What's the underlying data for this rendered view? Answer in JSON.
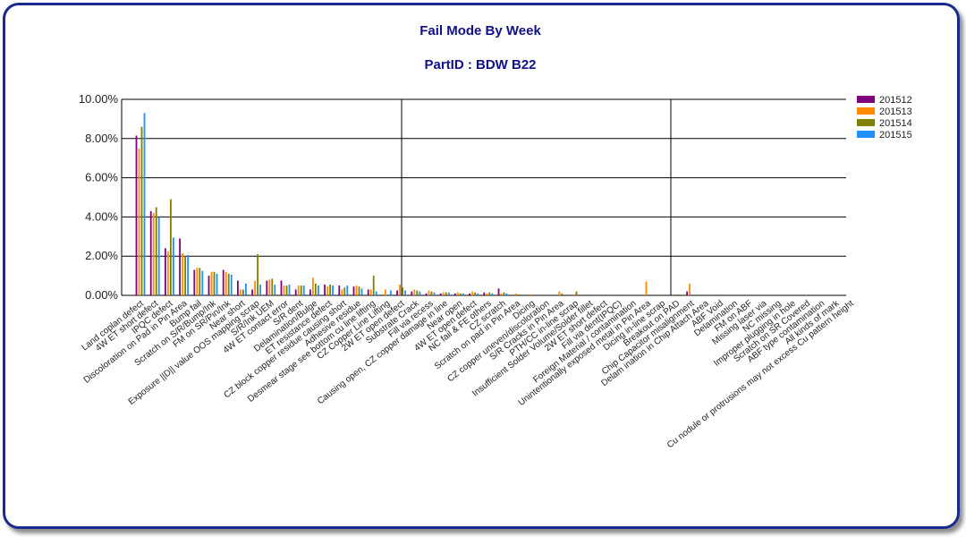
{
  "chart_data": {
    "type": "bar",
    "title": "Fail Mode By Week",
    "subtitle": "PartID  :  BDW B22",
    "xlabel": "",
    "ylabel": "",
    "ylim": [
      0,
      10
    ],
    "y_ticks": [
      "0.00%",
      "2.00%",
      "4.00%",
      "6.00%",
      "8.00%",
      "10.00%"
    ],
    "grid": "horizontal",
    "legend": "right",
    "categories": [
      "Land coplan defect",
      "4W ET short defect",
      "IPQC defect",
      "Discoloration on Pad in Pin Area",
      "Bump fail",
      "Scratch on S/R/Bump/Ink",
      "FM on SR/Pin/Ink",
      "Near short",
      "Exposure ||D|| value OOS mapping scrap",
      "S/R/Ink UEM",
      "4W ET contact error",
      "S/R dent",
      "Delamination/Bulge",
      "ET resistance defect",
      "CZ block copper residue causing short",
      "Adhesive residue",
      "Desmear stage see bottom cu line lifting",
      "CZ Copper Line Lifting",
      "2W ET open defect",
      "Substrate Crack",
      "Fill via recess",
      "Causing open, CZ copper damage in line",
      "Near open",
      "4W ET open defect",
      "NC fail & FE others",
      "CZ scratch",
      "Scratch on pad in Pin Area",
      "Dicing",
      "CZ copper uneven/discoloration",
      "S/R Cracks in Pin Area",
      "PTH/CC in-line scrap",
      "Insufficient Solder Volume/Solder fillet",
      "2W ET short defect",
      "Fill via dent(IPQC)",
      "Foreign Material / contamination",
      "Unintentionally exposed metal in Pin Area",
      "Dicing in-line scrap",
      "Breakout on PAD",
      "Chip Capacitor misalignment",
      "Delam ination in Chip Attach Area",
      "ABF Void",
      "Delamination",
      "FM on ABF",
      "Missing laser via",
      "NC missing",
      "Improper plugging in hole",
      "Scratch on SR Covered",
      "ABF type contamination",
      "All kinds of mark",
      "Cu nodule or protrusions may not excess Cu pattern height"
    ],
    "series": [
      {
        "name": "201512",
        "color": "#800080",
        "values": [
          8.15,
          4.3,
          2.4,
          2.9,
          1.3,
          1.0,
          1.3,
          0.75,
          0.3,
          0.75,
          0.75,
          0.3,
          0.3,
          0.55,
          0.5,
          0.45,
          0.3,
          0.0,
          0.25,
          0.2,
          0.1,
          0.1,
          0.1,
          0.1,
          0.15,
          0.35,
          0.0,
          0.0,
          0.0,
          0.0,
          0.0,
          0.0,
          0.0,
          0.0,
          0.0,
          0.0,
          0.0,
          0.0,
          0.2,
          0,
          0,
          0,
          0,
          0,
          0,
          0,
          0,
          0,
          0,
          0
        ]
      },
      {
        "name": "201513",
        "color": "#ff8c00",
        "values": [
          7.5,
          4.2,
          2.25,
          2.15,
          1.4,
          1.2,
          1.2,
          0.3,
          0.75,
          0.8,
          0.5,
          0.5,
          0.9,
          0.45,
          0.3,
          0.5,
          0.3,
          0.3,
          0.55,
          0.3,
          0.25,
          0.15,
          0.15,
          0.2,
          0.1,
          0.1,
          0.1,
          0.05,
          0.0,
          0.2,
          0.05,
          0.0,
          0.0,
          0.0,
          0.0,
          0.7,
          0.0,
          0.0,
          0.6,
          0,
          0,
          0,
          0,
          0,
          0,
          0,
          0,
          0,
          0,
          0
        ]
      },
      {
        "name": "201514",
        "color": "#808000",
        "values": [
          8.6,
          4.5,
          4.9,
          2.0,
          1.4,
          1.2,
          1.1,
          0.3,
          2.1,
          0.85,
          0.5,
          0.5,
          0.6,
          0.55,
          0.4,
          0.45,
          1.0,
          0.0,
          0.4,
          0.25,
          0.2,
          0.15,
          0.1,
          0.15,
          0.15,
          0.15,
          0.05,
          0.0,
          0.0,
          0.1,
          0.2,
          0.0,
          0.0,
          0.0,
          0.0,
          0.0,
          0.0,
          0.05,
          0.0,
          0,
          0,
          0,
          0,
          0,
          0,
          0,
          0,
          0,
          0,
          0
        ]
      },
      {
        "name": "201515",
        "color": "#1e90ff",
        "values": [
          9.3,
          4.0,
          2.95,
          2.05,
          1.25,
          1.1,
          1.05,
          0.6,
          0.55,
          0.55,
          0.55,
          0.5,
          0.5,
          0.5,
          0.5,
          0.35,
          0.2,
          0.25,
          0.25,
          0.2,
          0.15,
          0.15,
          0.1,
          0.1,
          0.1,
          0.1,
          0.0,
          0.0,
          0.0,
          0.0,
          0.0,
          0.0,
          0.0,
          0.0,
          0.0,
          0.0,
          0.0,
          0.0,
          0.0,
          0,
          0,
          0,
          0,
          0,
          0,
          0,
          0,
          0,
          0,
          0
        ]
      }
    ]
  }
}
